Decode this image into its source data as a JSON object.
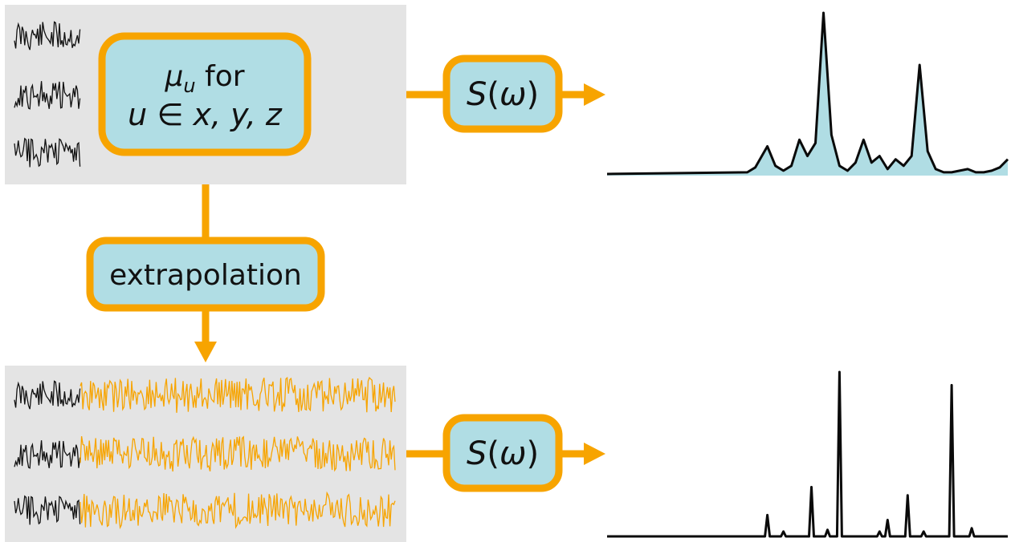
{
  "colors": {
    "orange": "#f7a400",
    "box_fill": "#b0dde4",
    "panel_gray": "#e4e4e4",
    "signal_black": "#111111",
    "spectrum_fill": "#b0dde4",
    "spectrum_line": "#0a0a0a"
  },
  "dipole_box": {
    "line1_symbol": "μ",
    "line1_subscript": "u",
    "line1_suffix": " for",
    "line2_u": "u",
    "line2_in": " ∈ ",
    "line2_vars": "x, y, z"
  },
  "extrapolation_box": {
    "label": "extrapolation"
  },
  "spectrum_box_top": {
    "label_S": "S",
    "label_open": "(",
    "label_omega": "ω",
    "label_close": ")"
  },
  "spectrum_box_bottom": {
    "label_S": "S",
    "label_open": "(",
    "label_omega": "ω",
    "label_close": ")"
  },
  "top_signals": {
    "count": 3,
    "description_icon": "short-time-signal"
  },
  "bottom_signals": {
    "count": 3
  },
  "chart_data": [
    {
      "type": "area",
      "title": "",
      "xlabel": "",
      "ylabel": "",
      "x": [
        0,
        0.35,
        0.37,
        0.4,
        0.42,
        0.44,
        0.46,
        0.48,
        0.5,
        0.52,
        0.54,
        0.56,
        0.58,
        0.6,
        0.62,
        0.64,
        0.66,
        0.68,
        0.7,
        0.72,
        0.74,
        0.76,
        0.78,
        0.8,
        0.82,
        0.84,
        0.86,
        0.88,
        0.9,
        0.92,
        0.94,
        0.96,
        0.98,
        1.0
      ],
      "values": [
        0.01,
        0.02,
        0.05,
        0.18,
        0.06,
        0.03,
        0.06,
        0.22,
        0.12,
        0.2,
        1.0,
        0.25,
        0.06,
        0.03,
        0.08,
        0.22,
        0.08,
        0.12,
        0.04,
        0.1,
        0.06,
        0.12,
        0.68,
        0.15,
        0.04,
        0.02,
        0.02,
        0.03,
        0.04,
        0.02,
        0.02,
        0.03,
        0.05,
        0.1
      ]
    },
    {
      "type": "line",
      "title": "",
      "xlabel": "",
      "ylabel": "",
      "peaks": [
        {
          "x": 0.4,
          "height": 0.13
        },
        {
          "x": 0.44,
          "height": 0.03
        },
        {
          "x": 0.51,
          "height": 0.3
        },
        {
          "x": 0.55,
          "height": 0.04
        },
        {
          "x": 0.58,
          "height": 1.0
        },
        {
          "x": 0.68,
          "height": 0.03
        },
        {
          "x": 0.7,
          "height": 0.1
        },
        {
          "x": 0.75,
          "height": 0.25
        },
        {
          "x": 0.79,
          "height": 0.03
        },
        {
          "x": 0.86,
          "height": 0.92
        },
        {
          "x": 0.91,
          "height": 0.05
        }
      ]
    }
  ]
}
